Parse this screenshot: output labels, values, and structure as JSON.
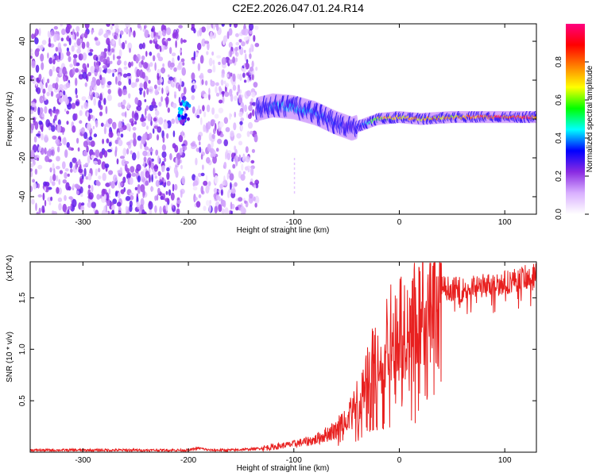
{
  "title": "C2E2.2026.047.01.24.R14",
  "chart_data": [
    {
      "type": "heatmap",
      "title": "C2E2.2026.047.01.24.R14",
      "xlabel": "Height of straight line (km)",
      "ylabel": "Frequency (Hz)",
      "xlim": [
        -350,
        130
      ],
      "ylim": [
        -49,
        49
      ],
      "xticks": [
        -300,
        -200,
        -100,
        0,
        100
      ],
      "yticks": [
        -40,
        -20,
        0,
        20,
        40
      ],
      "colorbar": {
        "label": "Normalized spectral amplitude",
        "range": [
          0.0,
          1.0
        ],
        "ticks": [
          0.0,
          0.2,
          0.4,
          0.6,
          0.8
        ],
        "tick_labels": [
          "0.0",
          "0.2",
          "0.4",
          "0.6",
          "0.8"
        ],
        "colormap": [
          "#ffffff",
          "#d9b0ff",
          "#8a2be2",
          "#0000ff",
          "#00ffff",
          "#00ff00",
          "#ffff00",
          "#ff8000",
          "#ff0000",
          "#ff0080"
        ]
      },
      "ridge_track": {
        "x": [
          -210,
          -200,
          -135,
          -120,
          -100,
          -80,
          -60,
          -45,
          -35,
          -20,
          0,
          20,
          50,
          90,
          130
        ],
        "frequency_hz": [
          3,
          2,
          5,
          7,
          6,
          3,
          -2,
          -5,
          -3,
          0,
          1,
          0,
          1,
          1,
          1
        ],
        "amplitude": [
          0.3,
          0.35,
          0.3,
          0.4,
          0.45,
          0.4,
          0.35,
          0.3,
          0.35,
          0.7,
          0.8,
          0.8,
          0.8,
          0.95,
          0.9
        ]
      },
      "noise_region_x": [
        -350,
        -135
      ]
    },
    {
      "type": "line",
      "xlabel": "Height of straight line (km)",
      "ylabel": "SNR (10 * v/v)",
      "scale_label": "(x10^4)",
      "xlim": [
        -350,
        130
      ],
      "ylim": [
        0,
        1.85
      ],
      "xticks": [
        -300,
        -200,
        -100,
        0,
        100
      ],
      "yticks": [
        0.5,
        1.0,
        1.5
      ],
      "ytick_labels": [
        "0.5",
        "1.0",
        "1.5"
      ],
      "series": [
        {
          "name": "SNR",
          "color": "#e8201f",
          "x": [
            -350,
            -300,
            -250,
            -200,
            -190,
            -180,
            -160,
            -140,
            -120,
            -100,
            -80,
            -60,
            -50,
            -40,
            -30,
            -20,
            -10,
            0,
            10,
            20,
            30,
            40,
            60,
            80,
            100,
            120,
            130
          ],
          "values": [
            0.02,
            0.02,
            0.02,
            0.02,
            0.04,
            0.02,
            0.02,
            0.03,
            0.05,
            0.08,
            0.12,
            0.22,
            0.35,
            0.5,
            0.8,
            1.0,
            1.1,
            1.25,
            1.3,
            1.45,
            1.55,
            1.6,
            1.58,
            1.62,
            1.65,
            1.7,
            1.72
          ]
        }
      ]
    }
  ]
}
